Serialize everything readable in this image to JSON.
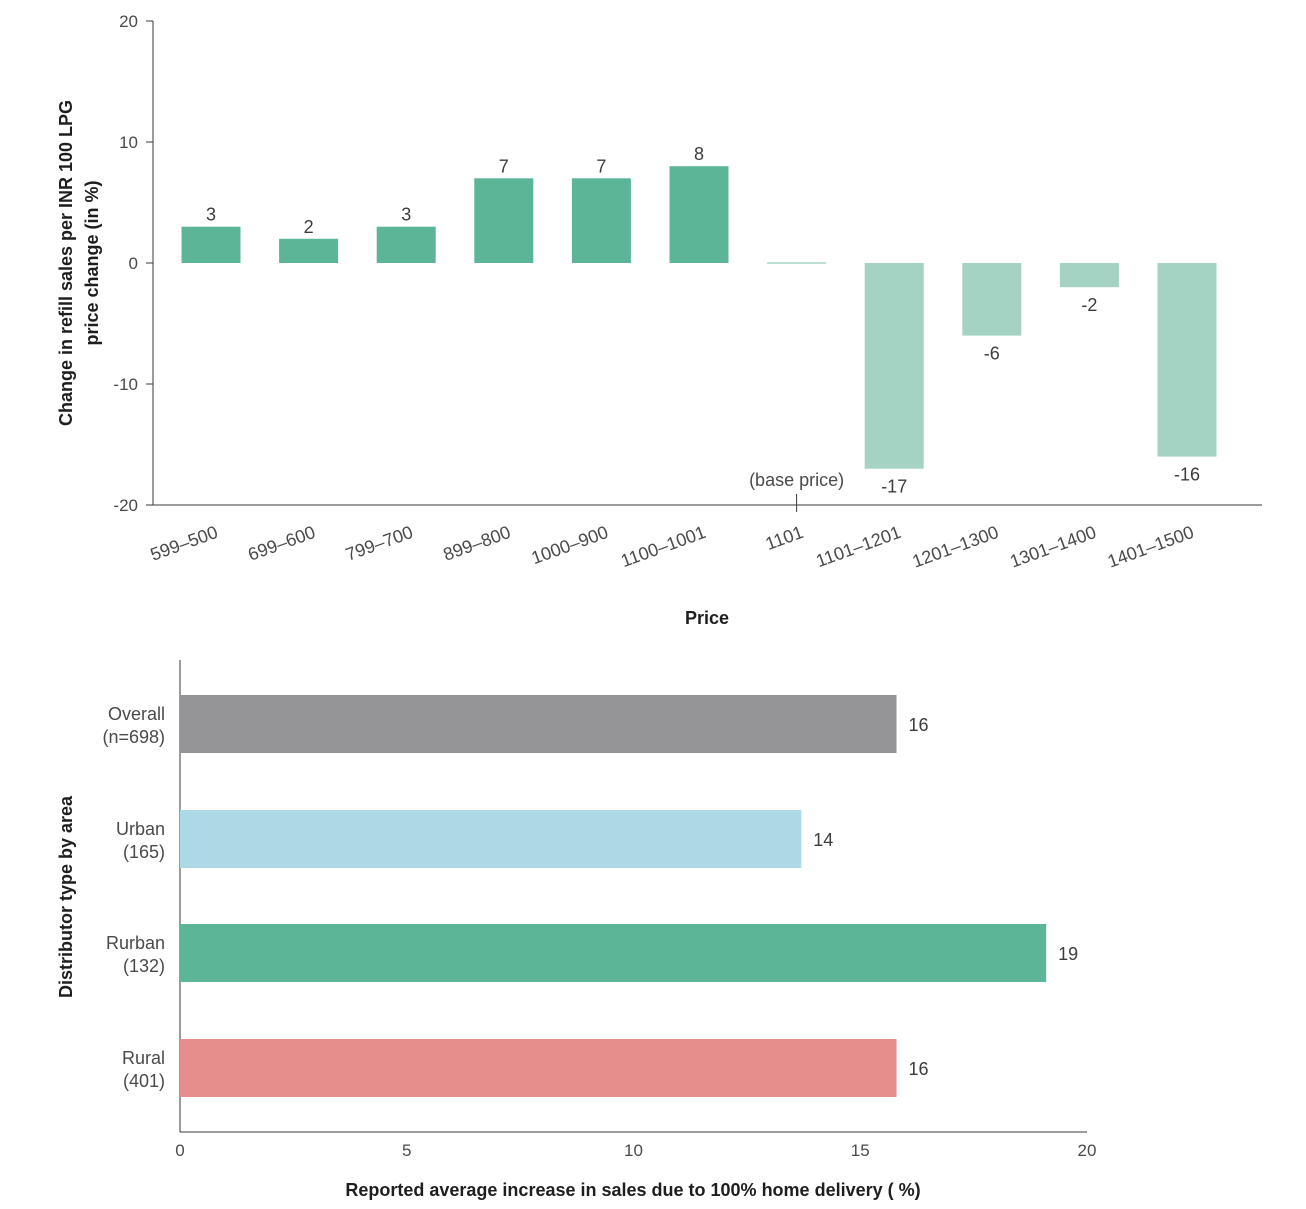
{
  "chart_data": [
    {
      "type": "bar",
      "orientation": "vertical",
      "xlabel": "Price",
      "ylabel_lines": [
        "Change in refill sales per INR 100 LPG",
        "price change (in %)"
      ],
      "ylim": [
        -20,
        20
      ],
      "yticks": [
        20,
        10,
        0,
        -10,
        -20
      ],
      "categories": [
        "599–500",
        "699–600",
        "799–700",
        "899–800",
        "1000–900",
        "1100–1001",
        "1101",
        "1101–1201",
        "1201–1300",
        "1301–1400",
        "1401–1500"
      ],
      "values": [
        3,
        2,
        3,
        7,
        7,
        8,
        0,
        -17,
        -6,
        -2,
        -16
      ],
      "data_labels": [
        "3",
        "2",
        "3",
        "7",
        "7",
        "8",
        "",
        "-17",
        "-6",
        "-2",
        "-16"
      ],
      "annotation": "(base price)",
      "annotation_category": "1101",
      "colors": {
        "positive": "#5bb596",
        "negative": "#a5d3c3"
      },
      "grid": false
    },
    {
      "type": "bar",
      "orientation": "horizontal",
      "xlabel": "Reported average increase in sales due to 100% home delivery ( %)",
      "ylabel": "Distributor type by area",
      "xlim": [
        0,
        20
      ],
      "xticks": [
        0,
        5,
        10,
        15,
        20
      ],
      "categories": [
        [
          "Overall",
          "(n=698)"
        ],
        [
          "Urban",
          "(165)"
        ],
        [
          "Rurban",
          "(132)"
        ],
        [
          "Rural",
          "(401)"
        ]
      ],
      "values": [
        15.8,
        13.7,
        19.1,
        15.8
      ],
      "data_labels": [
        "16",
        "14",
        "19",
        "16"
      ],
      "colors": [
        "#959597",
        "#add8e6",
        "#5bb596",
        "#e58e8b"
      ],
      "grid": false
    }
  ]
}
